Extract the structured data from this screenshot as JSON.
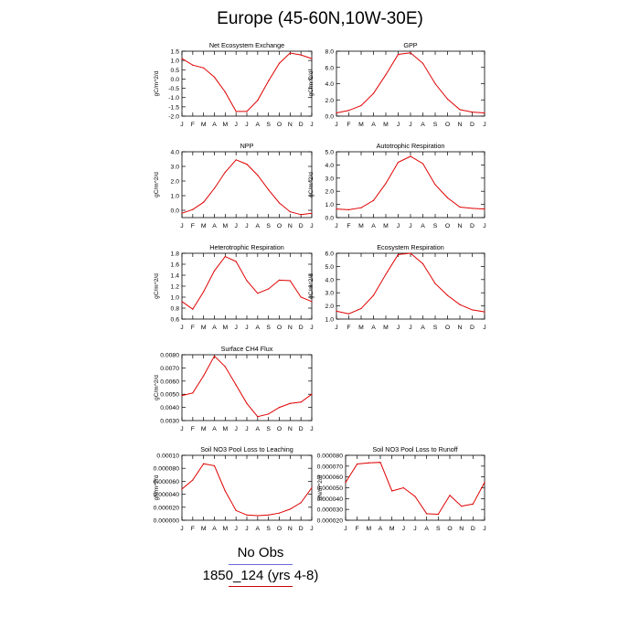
{
  "title": "Europe (45-60N,10W-30E)",
  "months": [
    "J",
    "F",
    "M",
    "A",
    "M",
    "J",
    "J",
    "A",
    "S",
    "O",
    "N",
    "D",
    "J"
  ],
  "legend": {
    "obs_label": "No Obs",
    "model_label": "1850_124 (yrs 4-8)",
    "model_color": "#e00000",
    "obs_color": "#0000c0"
  },
  "chart_data": [
    {
      "type": "line",
      "title": "Net Ecosystem Exchange",
      "ylabel": "gC/m^2/d",
      "ylim": [
        -2.0,
        1.5
      ],
      "yticks": [
        "1.5",
        "1.0",
        "0.5",
        "0.0",
        "-0.5",
        "-1.0",
        "-1.5",
        "-2.0"
      ],
      "ytick_values": [
        1.5,
        1.0,
        0.5,
        0.0,
        -0.5,
        -1.0,
        -1.5,
        -2.0
      ],
      "x": [
        "J",
        "F",
        "M",
        "A",
        "M",
        "J",
        "J",
        "A",
        "S",
        "O",
        "N",
        "D",
        "J"
      ],
      "series": [
        {
          "values": [
            1.1,
            0.75,
            0.6,
            0.1,
            -0.7,
            -1.75,
            -1.75,
            -1.15,
            -0.1,
            0.85,
            1.4,
            1.3,
            1.1
          ]
        }
      ]
    },
    {
      "type": "line",
      "title": "GPP",
      "ylabel": "gC/m^2/d",
      "ylim": [
        0.0,
        8.0
      ],
      "yticks": [
        "8.0",
        "6.0",
        "4.0",
        "2.0",
        "0.0"
      ],
      "ytick_values": [
        8.0,
        6.0,
        4.0,
        2.0,
        0.0
      ],
      "x": [
        "J",
        "F",
        "M",
        "A",
        "M",
        "J",
        "J",
        "A",
        "S",
        "O",
        "N",
        "D",
        "J"
      ],
      "series": [
        {
          "values": [
            0.4,
            0.7,
            1.3,
            2.8,
            5.1,
            7.6,
            7.8,
            6.5,
            4.0,
            2.1,
            0.8,
            0.5,
            0.4
          ]
        }
      ]
    },
    {
      "type": "line",
      "title": "NPP",
      "ylabel": "gC/m^2/d",
      "ylim": [
        -0.5,
        4.0
      ],
      "yticks": [
        "4.0",
        "3.0",
        "2.0",
        "1.0",
        "0.0"
      ],
      "ytick_values": [
        4.0,
        3.0,
        2.0,
        1.0,
        0.0
      ],
      "x": [
        "J",
        "F",
        "M",
        "A",
        "M",
        "J",
        "J",
        "A",
        "S",
        "O",
        "N",
        "D",
        "J"
      ],
      "series": [
        {
          "values": [
            -0.2,
            0.05,
            0.55,
            1.5,
            2.6,
            3.45,
            3.15,
            2.4,
            1.4,
            0.5,
            -0.1,
            -0.3,
            -0.2
          ]
        }
      ]
    },
    {
      "type": "line",
      "title": "Autotrophic Respiration",
      "ylabel": "gC/m^2/d",
      "ylim": [
        0.0,
        5.0
      ],
      "yticks": [
        "5.0",
        "4.0",
        "3.0",
        "2.0",
        "1.0",
        "0.0"
      ],
      "ytick_values": [
        5.0,
        4.0,
        3.0,
        2.0,
        1.0,
        0.0
      ],
      "x": [
        "J",
        "F",
        "M",
        "A",
        "M",
        "J",
        "J",
        "A",
        "S",
        "O",
        "N",
        "D",
        "J"
      ],
      "series": [
        {
          "values": [
            0.65,
            0.6,
            0.75,
            1.3,
            2.6,
            4.2,
            4.65,
            4.1,
            2.5,
            1.5,
            0.8,
            0.7,
            0.65
          ]
        }
      ]
    },
    {
      "type": "line",
      "title": "Heterotrophic Respiration",
      "ylabel": "gC/m^2/d",
      "ylim": [
        0.6,
        1.8
      ],
      "yticks": [
        "1.8",
        "1.6",
        "1.4",
        "1.2",
        "1.0",
        "0.8",
        "0.6"
      ],
      "ytick_values": [
        1.8,
        1.6,
        1.4,
        1.2,
        1.0,
        0.8,
        0.6
      ],
      "x": [
        "J",
        "F",
        "M",
        "A",
        "M",
        "J",
        "J",
        "A",
        "S",
        "O",
        "N",
        "D",
        "J"
      ],
      "series": [
        {
          "values": [
            0.92,
            0.78,
            1.1,
            1.48,
            1.74,
            1.65,
            1.3,
            1.07,
            1.15,
            1.31,
            1.3,
            1.0,
            0.92
          ]
        }
      ]
    },
    {
      "type": "line",
      "title": "Ecosystem Respiration",
      "ylabel": "gC/m^2/d",
      "ylim": [
        1.0,
        6.0
      ],
      "yticks": [
        "6.0",
        "5.0",
        "4.0",
        "3.0",
        "2.0",
        "1.0"
      ],
      "ytick_values": [
        6.0,
        5.0,
        4.0,
        3.0,
        2.0,
        1.0
      ],
      "x": [
        "J",
        "F",
        "M",
        "A",
        "M",
        "J",
        "J",
        "A",
        "S",
        "O",
        "N",
        "D",
        "J"
      ],
      "series": [
        {
          "values": [
            1.6,
            1.4,
            1.8,
            2.8,
            4.4,
            5.9,
            6.0,
            5.2,
            3.7,
            2.8,
            2.1,
            1.7,
            1.55
          ]
        }
      ]
    },
    {
      "type": "line",
      "title": "Surface CH4 Flux",
      "ylabel": "gC/m^2/d",
      "ylim": [
        0.003,
        0.008
      ],
      "yticks": [
        "0.0080",
        "0.0070",
        "0.0060",
        "0.0050",
        "0.0040",
        "0.0030"
      ],
      "ytick_values": [
        0.008,
        0.007,
        0.006,
        0.005,
        0.004,
        0.003
      ],
      "x": [
        "J",
        "F",
        "M",
        "A",
        "M",
        "J",
        "J",
        "A",
        "S",
        "O",
        "N",
        "D",
        "J"
      ],
      "series": [
        {
          "values": [
            0.0049,
            0.0051,
            0.0064,
            0.0079,
            0.0071,
            0.0057,
            0.0043,
            0.0033,
            0.0035,
            0.004,
            0.0043,
            0.0044,
            0.005
          ]
        }
      ]
    },
    {
      "type": "line",
      "title": "Soil NO3 Pool Loss to Leaching",
      "ylabel": "gN/m^2/d",
      "ylim": [
        0.0,
        0.0001
      ],
      "yticks": [
        "0.00010",
        "0.000080",
        "0.000060",
        "0.000040",
        "0.000020",
        "0.000000"
      ],
      "ytick_values": [
        0.0001,
        8e-05,
        6e-05,
        4e-05,
        2e-05,
        0.0
      ],
      "x": [
        "J",
        "F",
        "M",
        "A",
        "M",
        "J",
        "J",
        "A",
        "S",
        "O",
        "N",
        "D",
        "J"
      ],
      "series": [
        {
          "values": [
            4.8e-05,
            6.2e-05,
            8.7e-05,
            8.4e-05,
            4.5e-05,
            1.5e-05,
            8e-06,
            7e-06,
            8e-06,
            1.1e-05,
            1.7e-05,
            2.7e-05,
            5e-05
          ]
        }
      ]
    },
    {
      "type": "line",
      "title": "Soil NO3 Pool Loss to Runoff",
      "ylabel": "gN/m^2/d",
      "ylim": [
        2e-05,
        8e-05
      ],
      "yticks": [
        "0.000080",
        "0.000070",
        "0.000060",
        "0.000050",
        "0.000040",
        "0.000030",
        "0.000020"
      ],
      "ytick_values": [
        8e-05,
        7e-05,
        6e-05,
        5e-05,
        4e-05,
        3e-05,
        2e-05
      ],
      "x": [
        "J",
        "F",
        "M",
        "A",
        "M",
        "J",
        "J",
        "A",
        "S",
        "O",
        "N",
        "D",
        "J"
      ],
      "series": [
        {
          "values": [
            5.5e-05,
            7.2e-05,
            7.3e-05,
            7.35e-05,
            4.7e-05,
            5e-05,
            4.2e-05,
            2.6e-05,
            2.55e-05,
            4.3e-05,
            3.3e-05,
            3.5e-05,
            5.5e-05
          ]
        }
      ]
    }
  ]
}
